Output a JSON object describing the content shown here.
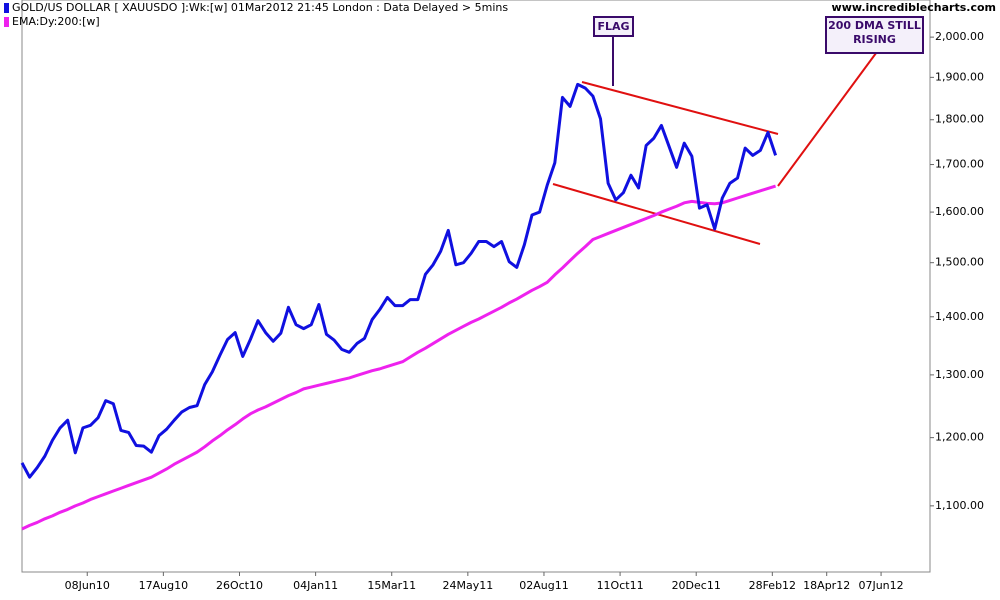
{
  "chart_data": {
    "type": "line",
    "source": "www.incrediblecharts.com",
    "annotations": [
      "FLAG",
      "200 DMA STILL RISING"
    ],
    "log_scale": true,
    "xlim": [
      "2010-04-09",
      "2012-07-22"
    ],
    "xticks": [
      {
        "value": "2010-06-08",
        "label": "08Jun10"
      },
      {
        "value": "2010-08-17",
        "label": "17Aug10"
      },
      {
        "value": "2010-10-26",
        "label": "26Oct10"
      },
      {
        "value": "2011-01-04",
        "label": "04Jan11"
      },
      {
        "value": "2011-03-15",
        "label": "15Mar11"
      },
      {
        "value": "2011-05-24",
        "label": "24May11"
      },
      {
        "value": "2011-08-02",
        "label": "02Aug11"
      },
      {
        "value": "2011-10-11",
        "label": "11Oct11"
      },
      {
        "value": "2011-12-20",
        "label": "20Dec11"
      },
      {
        "value": "2012-02-28",
        "label": "28Feb12"
      },
      {
        "value": "2012-04-18",
        "label": "18Apr12"
      },
      {
        "value": "2012-06-07",
        "label": "07Jun12"
      }
    ],
    "ylim": [
      1011,
      2097
    ],
    "yticks": [
      {
        "value": 1100,
        "label": "1,100.00"
      },
      {
        "value": 1200,
        "label": "1,200.00"
      },
      {
        "value": 1300,
        "label": "1,300.00"
      },
      {
        "value": 1400,
        "label": "1,400.00"
      },
      {
        "value": 1500,
        "label": "1,500.00"
      },
      {
        "value": 1600,
        "label": "1,600.00"
      },
      {
        "value": 1700,
        "label": "1,700.00"
      },
      {
        "value": 1800,
        "label": "1,800.00"
      },
      {
        "value": 1900,
        "label": "1,900.00"
      },
      {
        "value": 2000,
        "label": "2,000.00"
      }
    ],
    "x": [
      "2010-04-09",
      "2010-04-16",
      "2010-04-23",
      "2010-04-30",
      "2010-05-07",
      "2010-05-14",
      "2010-05-21",
      "2010-05-28",
      "2010-06-04",
      "2010-06-11",
      "2010-06-18",
      "2010-06-25",
      "2010-07-02",
      "2010-07-09",
      "2010-07-16",
      "2010-07-23",
      "2010-07-30",
      "2010-08-06",
      "2010-08-13",
      "2010-08-20",
      "2010-08-27",
      "2010-09-03",
      "2010-09-10",
      "2010-09-17",
      "2010-09-24",
      "2010-10-01",
      "2010-10-08",
      "2010-10-15",
      "2010-10-22",
      "2010-10-29",
      "2010-11-05",
      "2010-11-12",
      "2010-11-19",
      "2010-11-26",
      "2010-12-03",
      "2010-12-10",
      "2010-12-17",
      "2010-12-24",
      "2010-12-31",
      "2011-01-07",
      "2011-01-14",
      "2011-01-21",
      "2011-01-28",
      "2011-02-04",
      "2011-02-11",
      "2011-02-18",
      "2011-02-25",
      "2011-03-04",
      "2011-03-11",
      "2011-03-18",
      "2011-03-25",
      "2011-04-01",
      "2011-04-08",
      "2011-04-15",
      "2011-04-22",
      "2011-04-29",
      "2011-05-06",
      "2011-05-13",
      "2011-05-20",
      "2011-05-27",
      "2011-06-03",
      "2011-06-10",
      "2011-06-17",
      "2011-06-24",
      "2011-07-01",
      "2011-07-08",
      "2011-07-15",
      "2011-07-22",
      "2011-07-29",
      "2011-08-05",
      "2011-08-12",
      "2011-08-19",
      "2011-08-26",
      "2011-09-02",
      "2011-09-09",
      "2011-09-16",
      "2011-09-23",
      "2011-09-30",
      "2011-10-07",
      "2011-10-14",
      "2011-10-21",
      "2011-10-28",
      "2011-11-04",
      "2011-11-11",
      "2011-11-18",
      "2011-11-25",
      "2011-12-02",
      "2011-12-09",
      "2011-12-16",
      "2011-12-23",
      "2011-12-30",
      "2012-01-06",
      "2012-01-13",
      "2012-01-20",
      "2012-01-27",
      "2012-02-03",
      "2012-02-10",
      "2012-02-17",
      "2012-02-24",
      "2012-03-02"
    ],
    "series": [
      {
        "name": "GOLD/US DOLLAR [ XAUUSDO ]:Wk:[w]  01Mar2012 21:45 London : Data Delayed > 5mins",
        "color": "#1010e0",
        "values": [
          1162,
          1141,
          1155,
          1172,
          1196,
          1215,
          1227,
          1177,
          1215,
          1219,
          1231,
          1258,
          1253,
          1211,
          1208,
          1188,
          1187,
          1178,
          1203,
          1213,
          1227,
          1240,
          1247,
          1250,
          1284,
          1305,
          1333,
          1360,
          1372,
          1331,
          1360,
          1393,
          1372,
          1357,
          1371,
          1417,
          1386,
          1379,
          1386,
          1422,
          1369,
          1359,
          1343,
          1338,
          1353,
          1362,
          1395,
          1413,
          1435,
          1420,
          1420,
          1431,
          1431,
          1478,
          1496,
          1522,
          1563,
          1496,
          1500,
          1518,
          1541,
          1541,
          1531,
          1541,
          1502,
          1491,
          1535,
          1594,
          1600,
          1656,
          1704,
          1852,
          1831,
          1883,
          1874,
          1855,
          1802,
          1660,
          1625,
          1640,
          1677,
          1650,
          1742,
          1758,
          1787,
          1740,
          1694,
          1747,
          1718,
          1608,
          1615,
          1566,
          1629,
          1660,
          1671,
          1736,
          1720,
          1731,
          1771,
          1720
        ]
      },
      {
        "name": "EMA:Dy:200:[w]",
        "color": "#ee22ee",
        "values": [
          1068,
          1073,
          1077,
          1082,
          1086,
          1091,
          1095,
          1100,
          1104,
          1109,
          1113,
          1117,
          1121,
          1125,
          1129,
          1133,
          1137,
          1141,
          1147,
          1153,
          1160,
          1166,
          1172,
          1178,
          1186,
          1195,
          1203,
          1212,
          1220,
          1229,
          1237,
          1243,
          1248,
          1254,
          1260,
          1266,
          1271,
          1277,
          1280,
          1283,
          1286,
          1289,
          1292,
          1295,
          1299,
          1303,
          1307,
          1310,
          1314,
          1318,
          1322,
          1330,
          1338,
          1345,
          1353,
          1361,
          1369,
          1376,
          1383,
          1390,
          1396,
          1403,
          1410,
          1417,
          1425,
          1432,
          1440,
          1448,
          1455,
          1463,
          1477,
          1490,
          1504,
          1518,
          1531,
          1545,
          1551,
          1557,
          1563,
          1569,
          1575,
          1581,
          1587,
          1593,
          1600,
          1606,
          1612,
          1619,
          1622,
          1620,
          1618,
          1617,
          1619,
          1624,
          1629,
          1634,
          1639,
          1644,
          1649,
          1654
        ]
      }
    ]
  }
}
